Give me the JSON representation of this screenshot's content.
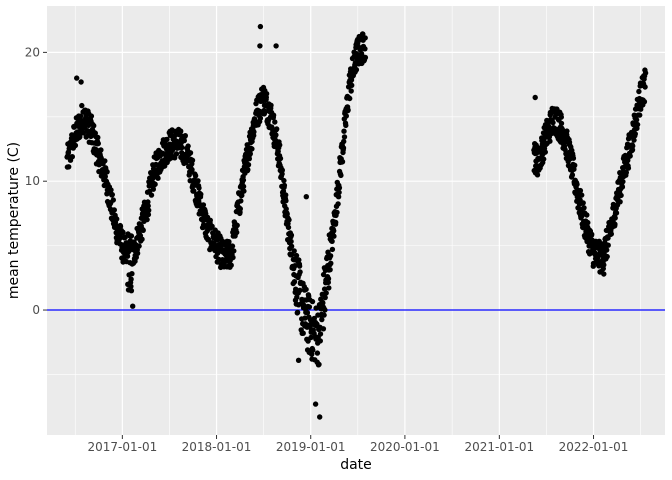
{
  "chart_data": {
    "type": "scatter",
    "xlabel": "date",
    "ylabel": "mean temperature (C)",
    "x_ticks": [
      "2017-01-01",
      "2018-01-01",
      "2019-01-01",
      "2020-01-01",
      "2021-01-01",
      "2022-01-01"
    ],
    "y_ticks": [
      0,
      10,
      20
    ],
    "xlim": [
      "2016-03-15",
      "2022-10-05"
    ],
    "ylim": [
      -9.7,
      23.6
    ],
    "grid": true,
    "reference_line": {
      "y": 0,
      "color": "#0000ff"
    },
    "point_color": "#000000",
    "panel_background": "#ebebeb",
    "grid_color": "#ffffff",
    "series_trend": [
      {
        "date": "2016-06-01",
        "value": 11.5
      },
      {
        "date": "2016-07-01",
        "value": 13.5
      },
      {
        "date": "2016-08-01",
        "value": 15.0
      },
      {
        "date": "2016-09-01",
        "value": 14.0
      },
      {
        "date": "2016-10-01",
        "value": 12.0
      },
      {
        "date": "2016-11-01",
        "value": 10.0
      },
      {
        "date": "2016-12-01",
        "value": 7.0
      },
      {
        "date": "2017-01-01",
        "value": 5.0
      },
      {
        "date": "2017-02-01",
        "value": 3.5
      },
      {
        "date": "2017-03-01",
        "value": 5.5
      },
      {
        "date": "2017-04-01",
        "value": 7.5
      },
      {
        "date": "2017-05-01",
        "value": 10.5
      },
      {
        "date": "2017-06-01",
        "value": 12.0
      },
      {
        "date": "2017-07-01",
        "value": 12.8
      },
      {
        "date": "2017-08-01",
        "value": 13.0
      },
      {
        "date": "2017-09-01",
        "value": 12.5
      },
      {
        "date": "2017-10-01",
        "value": 10.5
      },
      {
        "date": "2017-11-01",
        "value": 8.0
      },
      {
        "date": "2017-12-01",
        "value": 6.0
      },
      {
        "date": "2018-01-01",
        "value": 5.0
      },
      {
        "date": "2018-02-01",
        "value": 4.0
      },
      {
        "date": "2018-03-01",
        "value": 4.5
      },
      {
        "date": "2018-04-01",
        "value": 8.5
      },
      {
        "date": "2018-05-01",
        "value": 12.0
      },
      {
        "date": "2018-06-01",
        "value": 15.0
      },
      {
        "date": "2018-07-01",
        "value": 16.5
      },
      {
        "date": "2018-08-01",
        "value": 15.0
      },
      {
        "date": "2018-09-01",
        "value": 12.0
      },
      {
        "date": "2018-10-01",
        "value": 7.0
      },
      {
        "date": "2018-11-01",
        "value": 3.0
      },
      {
        "date": "2018-12-01",
        "value": 0.0
      },
      {
        "date": "2019-01-01",
        "value": -1.5
      },
      {
        "date": "2019-02-01",
        "value": -2.0
      },
      {
        "date": "2019-03-01",
        "value": 2.0
      },
      {
        "date": "2019-04-01",
        "value": 6.5
      },
      {
        "date": "2019-05-01",
        "value": 12.0
      },
      {
        "date": "2019-06-01",
        "value": 17.5
      },
      {
        "date": "2019-07-01",
        "value": 20.0
      },
      {
        "date": "2019-08-01",
        "value": 20.5
      },
      {
        "date": "2021-05-15",
        "value": 12.0
      },
      {
        "date": "2021-06-01",
        "value": 11.5
      },
      {
        "date": "2021-07-01",
        "value": 13.5
      },
      {
        "date": "2021-08-01",
        "value": 15.0
      },
      {
        "date": "2021-09-01",
        "value": 14.0
      },
      {
        "date": "2021-10-01",
        "value": 12.0
      },
      {
        "date": "2021-11-01",
        "value": 9.0
      },
      {
        "date": "2021-12-01",
        "value": 6.5
      },
      {
        "date": "2022-01-01",
        "value": 4.5
      },
      {
        "date": "2022-02-01",
        "value": 4.0
      },
      {
        "date": "2022-03-01",
        "value": 5.5
      },
      {
        "date": "2022-04-01",
        "value": 8.5
      },
      {
        "date": "2022-05-01",
        "value": 11.0
      },
      {
        "date": "2022-06-01",
        "value": 13.5
      },
      {
        "date": "2022-07-01",
        "value": 16.5
      },
      {
        "date": "2022-07-20",
        "value": 17.5
      }
    ],
    "outlier_points": [
      {
        "date": "2016-07-08",
        "value": 18.0
      },
      {
        "date": "2016-07-25",
        "value": 17.7
      },
      {
        "date": "2017-02-10",
        "value": 0.3
      },
      {
        "date": "2017-02-05",
        "value": 1.5
      },
      {
        "date": "2018-06-20",
        "value": 22.0
      },
      {
        "date": "2018-06-18",
        "value": 20.5
      },
      {
        "date": "2018-08-20",
        "value": 20.5
      },
      {
        "date": "2018-11-15",
        "value": -3.9
      },
      {
        "date": "2019-01-20",
        "value": -7.3
      },
      {
        "date": "2019-02-05",
        "value": -8.3
      },
      {
        "date": "2018-12-15",
        "value": 8.8
      },
      {
        "date": "2021-05-20",
        "value": 16.5
      },
      {
        "date": "2022-02-10",
        "value": 2.8
      },
      {
        "date": "2022-07-22",
        "value": 18.4
      }
    ]
  }
}
